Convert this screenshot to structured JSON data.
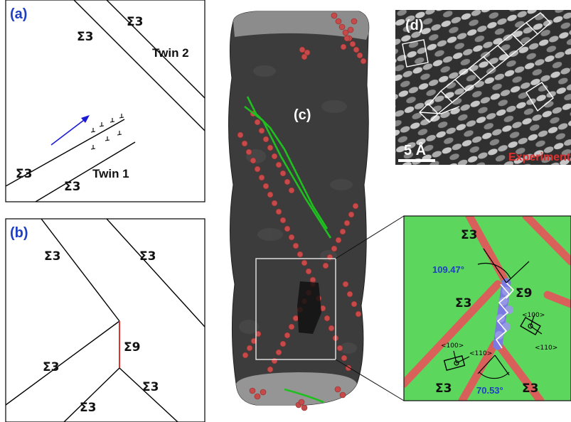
{
  "panel_a": {
    "letter": "(a)",
    "sigma_top": "Σ3",
    "twin2": "Twin 2",
    "sigma_bl1": "Σ3",
    "sigma_bl2": "Σ3",
    "twin1": "Twin 1"
  },
  "panel_b": {
    "letter": "(b)",
    "sigma_tl": "Σ3",
    "sigma_tr": "Σ3",
    "sigma9": "Σ9",
    "sigma_bl": "Σ3",
    "sigma_br": "Σ3",
    "sigma_bm": "Σ3"
  },
  "panel_c": {
    "letter": "(c)"
  },
  "panel_d": {
    "letter": "(d)",
    "scale": "5 Å",
    "caption": "Experiment"
  },
  "panel_e": {
    "sigma_top": "Σ3",
    "angle_top": "109.47°",
    "sigma9": "Σ9",
    "sigma_left": "Σ3",
    "dir_100_right": "<100>",
    "dir_110_right": "<110>",
    "dir_100_left": "<100>",
    "dir_110_left": "<110>",
    "sigma_bl": "Σ3",
    "angle_bottom": "70.53°",
    "sigma_br": "Σ3"
  },
  "colors": {
    "label_blue": "#1f3fc4",
    "sigma9_red": "#e03030",
    "green_atom": "#5cd65c",
    "red_atom": "#e05a5a",
    "blue_atom": "#7a7ae0"
  }
}
